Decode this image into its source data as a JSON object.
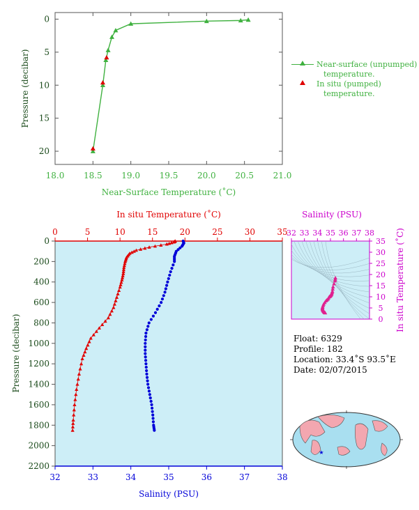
{
  "chart_data": [
    {
      "type": "line",
      "xlabel": "Near-Surface Temperature (˚C)",
      "ylabel": "Pressure (decibar)",
      "xlim": [
        18.0,
        21.0
      ],
      "ylim": [
        22,
        -1
      ],
      "x_ticks": [
        "18.0",
        "18.5",
        "19.0",
        "19.5",
        "20.0",
        "20.5",
        "21.0"
      ],
      "y_ticks": [
        "0",
        "5",
        "10",
        "15",
        "20"
      ],
      "grid": false,
      "legend_position": "right",
      "series": [
        {
          "name": "Near-surface (unpumped) temperature.",
          "color": "#3fb13f",
          "marker": "triangle",
          "points": [
            {
              "t": 20.55,
              "p": 0.1
            },
            {
              "t": 20.45,
              "p": 0.2
            },
            {
              "t": 20.0,
              "p": 0.3
            },
            {
              "t": 19.0,
              "p": 0.7
            },
            {
              "t": 18.8,
              "p": 1.7
            },
            {
              "t": 18.75,
              "p": 2.7
            },
            {
              "t": 18.7,
              "p": 4.7
            },
            {
              "t": 18.67,
              "p": 6.2
            },
            {
              "t": 18.63,
              "p": 10.0
            },
            {
              "t": 18.5,
              "p": 20.0
            }
          ]
        },
        {
          "name": "In situ (pumped) temperature.",
          "color": "#e00000",
          "marker": "triangle",
          "points": [
            {
              "t": 18.68,
              "p": 5.8
            },
            {
              "t": 18.63,
              "p": 9.6
            },
            {
              "t": 18.5,
              "p": 19.6
            }
          ]
        }
      ]
    },
    {
      "type": "scatter",
      "top_axis_label": "In situ Temperature (˚C)",
      "bottom_axis_label": "Salinity (PSU)",
      "ylabel": "Pressure (decibar)",
      "temperature_lim": [
        0,
        35
      ],
      "salinity_lim": [
        32,
        38
      ],
      "ylim": [
        2200,
        0
      ],
      "temperature_ticks": [
        "0",
        "5",
        "10",
        "15",
        "20",
        "25",
        "30",
        "35"
      ],
      "salinity_ticks": [
        "32",
        "33",
        "34",
        "35",
        "36",
        "37",
        "38"
      ],
      "y_ticks": [
        "0",
        "200",
        "400",
        "600",
        "800",
        "1000",
        "1200",
        "1400",
        "1600",
        "1800",
        "2000",
        "2200"
      ],
      "grid": false,
      "series": [
        {
          "name": "In situ Temperature",
          "color": "#e00000",
          "marker": "triangle",
          "profile": [
            [
              0,
              18.5
            ],
            [
              10,
              18.3
            ],
            [
              30,
              17.2
            ],
            [
              60,
              14.5
            ],
            [
              90,
              12.5
            ],
            [
              120,
              11.5
            ],
            [
              160,
              11.0
            ],
            [
              200,
              10.8
            ],
            [
              260,
              10.6
            ],
            [
              320,
              10.5
            ],
            [
              380,
              10.3
            ],
            [
              450,
              10.0
            ],
            [
              550,
              9.5
            ],
            [
              650,
              9.0
            ],
            [
              750,
              8.2
            ],
            [
              850,
              6.8
            ],
            [
              950,
              5.5
            ],
            [
              1050,
              4.8
            ],
            [
              1150,
              4.2
            ],
            [
              1300,
              3.7
            ],
            [
              1450,
              3.3
            ],
            [
              1600,
              3.0
            ],
            [
              1750,
              2.8
            ],
            [
              1850,
              2.7
            ]
          ]
        },
        {
          "name": "Salinity",
          "color": "#0000d8",
          "marker": "circle",
          "profile": [
            [
              0,
              35.38
            ],
            [
              20,
              35.4
            ],
            [
              50,
              35.35
            ],
            [
              100,
              35.2
            ],
            [
              150,
              35.15
            ],
            [
              200,
              35.15
            ],
            [
              300,
              35.05
            ],
            [
              400,
              34.97
            ],
            [
              500,
              34.9
            ],
            [
              600,
              34.8
            ],
            [
              700,
              34.65
            ],
            [
              800,
              34.48
            ],
            [
              900,
              34.4
            ],
            [
              1000,
              34.38
            ],
            [
              1100,
              34.38
            ],
            [
              1200,
              34.4
            ],
            [
              1300,
              34.42
            ],
            [
              1400,
              34.45
            ],
            [
              1500,
              34.5
            ],
            [
              1600,
              34.55
            ],
            [
              1700,
              34.58
            ],
            [
              1800,
              34.6
            ],
            [
              1850,
              34.62
            ]
          ]
        }
      ]
    },
    {
      "type": "scatter",
      "title": "Salinity (PSU)",
      "xlabel": "",
      "ylabel": "In situ Temperature (˚C)",
      "xlim": [
        32,
        38
      ],
      "ylim": [
        0,
        35
      ],
      "x_ticks": [
        "32",
        "33",
        "34",
        "35",
        "36",
        "37",
        "38"
      ],
      "y_ticks": [
        "0",
        "5",
        "10",
        "15",
        "20",
        "25",
        "30",
        "35"
      ],
      "color": "#e0208f",
      "points": [
        [
          35.38,
          18.5
        ],
        [
          35.35,
          17.2
        ],
        [
          35.2,
          14.5
        ],
        [
          35.15,
          12.5
        ],
        [
          35.1,
          11.5
        ],
        [
          35.05,
          10.8
        ],
        [
          34.97,
          10.3
        ],
        [
          34.9,
          10.0
        ],
        [
          34.8,
          9.0
        ],
        [
          34.65,
          8.2
        ],
        [
          34.48,
          6.8
        ],
        [
          34.4,
          5.5
        ],
        [
          34.38,
          4.8
        ],
        [
          34.4,
          4.2
        ],
        [
          34.45,
          3.7
        ],
        [
          34.5,
          3.3
        ],
        [
          34.55,
          3.0
        ],
        [
          34.6,
          2.8
        ]
      ]
    }
  ],
  "legend": {
    "item1_line1": "Near-surface (unpumped)",
    "item1_line2": "temperature.",
    "item2_line1": "In situ (pumped)",
    "item2_line2": "temperature."
  },
  "info": {
    "float_label": "Float:",
    "float_value": "6329",
    "profile_label": "Profile:",
    "profile_value": "182",
    "location_label": "Location:",
    "location_value": "33.4˚S  93.5˚E",
    "date_label": "Date:",
    "date_value": "02/07/2015"
  },
  "colors": {
    "green": "#3fb13f",
    "red": "#e00000",
    "blue": "#0000d8",
    "magenta": "#cc00cc",
    "pink": "#e0208f",
    "plot_bg": "#cdeef7",
    "axis_text": "#1a4a1a"
  },
  "map": {
    "marker_icon": "star-icon"
  }
}
